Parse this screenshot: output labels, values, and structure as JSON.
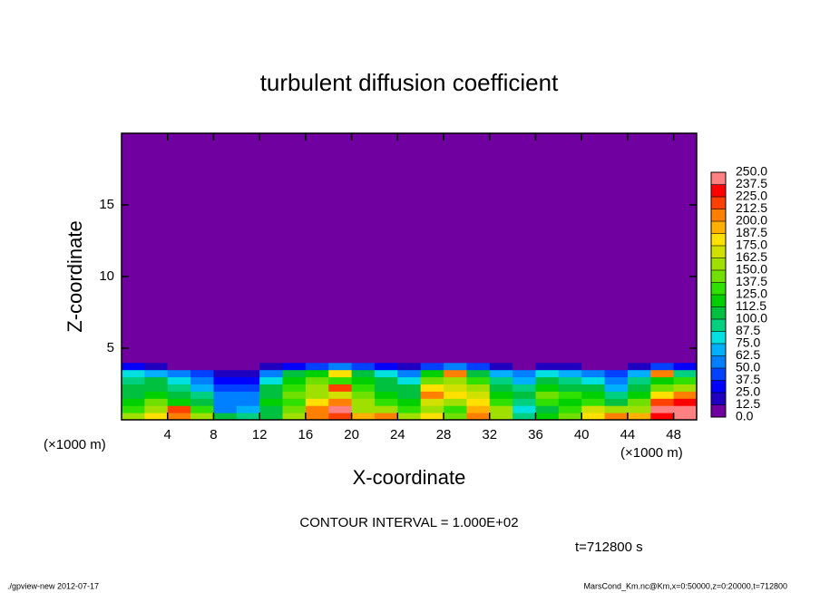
{
  "chart_data": {
    "type": "heatmap",
    "title": "turbulent diffusion coefficient",
    "x_label": "X-coordinate",
    "y_label": "Z-coordinate",
    "x_unit_label": "(×1000 m)",
    "x_unit_label_right": "(×1000 m)",
    "contour_note": "CONTOUR INTERVAL = 1.000E+02",
    "time_label": "t=712800 s",
    "footer_left": "./gpview-new  2012-07-17",
    "footer_right": "MarsCond_Km.nc@Km,x=0:50000,z=0:20000,t=712800",
    "xlim": [
      0,
      50
    ],
    "ylim": [
      0,
      20
    ],
    "xticks": [
      4,
      8,
      12,
      16,
      20,
      24,
      28,
      32,
      36,
      40,
      44,
      48
    ],
    "yticks": [
      5,
      10,
      15
    ],
    "xbins": [
      0,
      2,
      4,
      6,
      8,
      10,
      12,
      14,
      16,
      18,
      20,
      22,
      24,
      26,
      28,
      30,
      32,
      34,
      36,
      38,
      40,
      42,
      44,
      46,
      48,
      50
    ],
    "ybins": [
      0,
      0.5,
      1,
      1.5,
      2,
      2.5,
      3,
      3.5,
      4,
      20
    ],
    "values": [
      [
        150,
        180,
        200,
        160,
        100,
        90,
        110,
        150,
        210,
        220,
        190,
        200,
        150,
        180,
        140,
        200,
        160,
        90,
        120,
        140,
        180,
        200,
        190,
        230,
        240
      ],
      [
        130,
        160,
        220,
        130,
        60,
        70,
        100,
        140,
        200,
        240,
        160,
        150,
        130,
        160,
        130,
        190,
        150,
        80,
        110,
        130,
        170,
        150,
        160,
        240,
        250
      ],
      [
        120,
        140,
        120,
        100,
        50,
        60,
        120,
        130,
        180,
        210,
        150,
        130,
        120,
        170,
        150,
        180,
        130,
        90,
        130,
        120,
        130,
        110,
        140,
        220,
        230
      ],
      [
        110,
        120,
        100,
        90,
        60,
        50,
        110,
        140,
        160,
        170,
        140,
        120,
        110,
        200,
        180,
        170,
        120,
        100,
        140,
        130,
        120,
        90,
        120,
        180,
        200
      ],
      [
        100,
        110,
        90,
        70,
        40,
        40,
        100,
        130,
        150,
        220,
        130,
        110,
        100,
        180,
        170,
        150,
        110,
        90,
        120,
        110,
        100,
        70,
        110,
        140,
        150
      ],
      [
        90,
        100,
        80,
        60,
        30,
        30,
        80,
        120,
        140,
        130,
        120,
        100,
        80,
        140,
        150,
        130,
        90,
        70,
        100,
        90,
        80,
        50,
        90,
        120,
        130
      ],
      [
        80,
        70,
        50,
        40,
        20,
        20,
        60,
        100,
        120,
        180,
        110,
        80,
        60,
        120,
        200,
        110,
        70,
        50,
        80,
        70,
        60,
        40,
        70,
        210,
        90
      ],
      [
        30,
        20,
        10,
        10,
        5,
        5,
        20,
        30,
        40,
        50,
        40,
        30,
        20,
        40,
        60,
        40,
        20,
        10,
        20,
        20,
        10,
        10,
        20,
        40,
        30
      ],
      [
        0,
        0,
        0,
        0,
        0,
        0,
        0,
        0,
        0,
        0,
        0,
        0,
        0,
        0,
        0,
        0,
        0,
        0,
        0,
        0,
        0,
        0,
        0,
        0,
        0
      ]
    ],
    "levels": [
      {
        "value": 0,
        "label": "0.0"
      },
      {
        "value": 12.5,
        "label": "12.5"
      },
      {
        "value": 25,
        "label": "25.0"
      },
      {
        "value": 37.5,
        "label": "37.5"
      },
      {
        "value": 50,
        "label": "50.0"
      },
      {
        "value": 62.5,
        "label": "62.5"
      },
      {
        "value": 75,
        "label": "75.0"
      },
      {
        "value": 87.5,
        "label": "87.5"
      },
      {
        "value": 100,
        "label": "100.0"
      },
      {
        "value": 112.5,
        "label": "112.5"
      },
      {
        "value": 125,
        "label": "125.0"
      },
      {
        "value": 137.5,
        "label": "137.5"
      },
      {
        "value": 150,
        "label": "150.0"
      },
      {
        "value": 162.5,
        "label": "162.5"
      },
      {
        "value": 175,
        "label": "175.0"
      },
      {
        "value": 187.5,
        "label": "187.5"
      },
      {
        "value": 200,
        "label": "200.0"
      },
      {
        "value": 212.5,
        "label": "212.5"
      },
      {
        "value": 225,
        "label": "225.0"
      },
      {
        "value": 237.5,
        "label": "237.5"
      },
      {
        "value": 250,
        "label": "250.0"
      }
    ],
    "colors": [
      "#7000a0",
      "#2000c0",
      "#0000ff",
      "#0040ff",
      "#0080ff",
      "#00b0ff",
      "#00e0e0",
      "#00d080",
      "#00c040",
      "#00d000",
      "#30e000",
      "#70e000",
      "#a0e000",
      "#d0e000",
      "#ffe000",
      "#ffb000",
      "#ff8000",
      "#ff4000",
      "#ff0000",
      "#ff8080"
    ]
  }
}
